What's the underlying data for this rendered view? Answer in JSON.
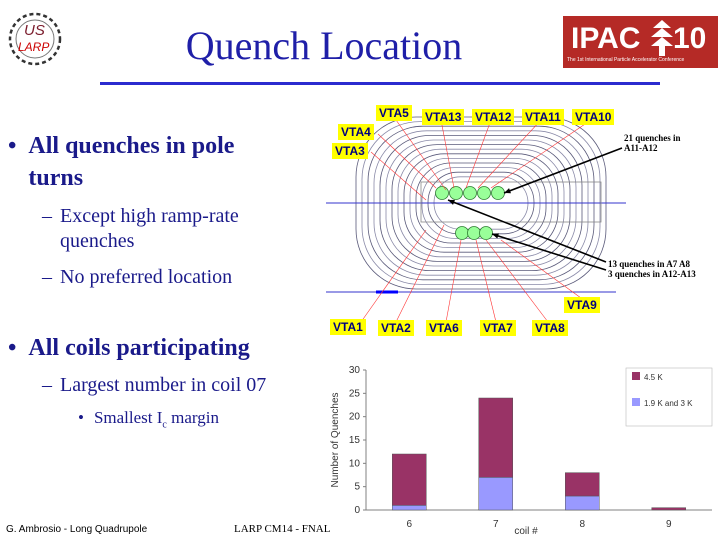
{
  "slide": {
    "title": "Quench Location",
    "bullets": {
      "b1": "All quenches in pole turns",
      "b1_sub1": "Except high ramp-rate quenches",
      "b1_sub2": "No preferred location",
      "b2": "All coils participating",
      "b2_sub1": "Largest number in coil 07",
      "b2_subsub1_pre": "Smallest I",
      "b2_subsub1_sub": "c",
      "b2_subsub1_post": " margin"
    },
    "footer_left": "G. Ambrosio - Long Quadrupole",
    "footer_mid": "LARP CM14 - FNAL"
  },
  "logos": {
    "us_larp_top": "US",
    "us_larp_bottom": "LARP",
    "ipac_text": "IPAC",
    "ipac_number": "10",
    "ipac_subtitle": "The 1st International Particle Accelerator Conference"
  },
  "coil_diagram": {
    "tags_top": [
      "VTA5",
      "VTA13",
      "VTA12",
      "VTA11",
      "VTA10"
    ],
    "tag_vta4": "VTA4",
    "tag_vta3": "VTA3",
    "tag_vta9": "VTA9",
    "tags_bottom": [
      "VTA1",
      "VTA2",
      "VTA6",
      "VTA7",
      "VTA8"
    ],
    "note1_line1": "21 quenches in",
    "note1_line2": "A11-A12",
    "note2_line1": "13 quenches in A7 A8",
    "note2_line2": "3 quenches in A12-A13"
  },
  "chart_data": {
    "type": "bar",
    "stacked": true,
    "categories": [
      "6",
      "7",
      "8",
      "9"
    ],
    "series": [
      {
        "name": "4.5 K",
        "values": [
          11,
          17,
          5,
          0.5
        ],
        "color": "#993366"
      },
      {
        "name": "1.9 K and 3 K",
        "values": [
          1,
          7,
          3,
          0
        ],
        "color": "#9999ff"
      }
    ],
    "xlabel": "coil #",
    "ylabel": "Number of Quenches",
    "ylim": [
      0,
      30
    ],
    "yticks": [
      0,
      5,
      10,
      15,
      20,
      25,
      30
    ],
    "legend_position": "top-right",
    "grid": false
  }
}
